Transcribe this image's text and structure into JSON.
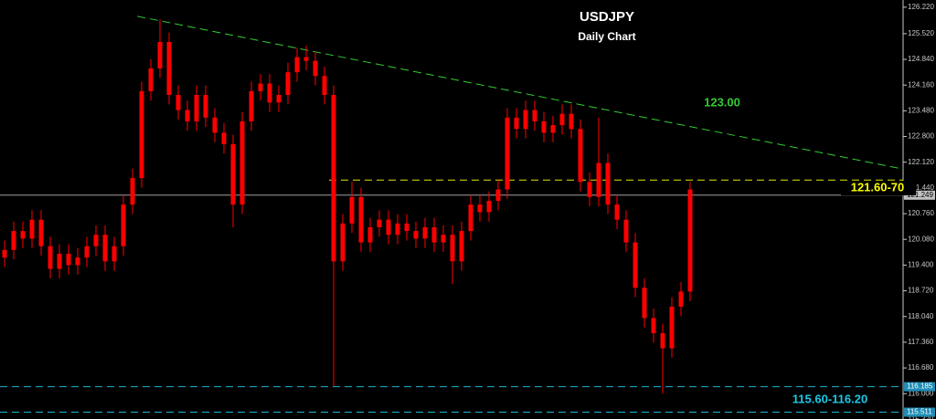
{
  "chart_data": {
    "type": "candlestick",
    "title": "USDJPY",
    "subtitle": "Daily Chart",
    "ylim": [
      115.33,
      126.41
    ],
    "yticks": [
      {
        "value": 126.22,
        "label": "126.220"
      },
      {
        "value": 125.52,
        "label": "125.520"
      },
      {
        "value": 124.84,
        "label": "124.840"
      },
      {
        "value": 124.16,
        "label": "124.160"
      },
      {
        "value": 123.48,
        "label": "123.480"
      },
      {
        "value": 122.8,
        "label": "122.800"
      },
      {
        "value": 122.12,
        "label": "122.120"
      },
      {
        "value": 121.44,
        "label": "121.440"
      },
      {
        "value": 120.76,
        "label": "120.760"
      },
      {
        "value": 120.08,
        "label": "120.080"
      },
      {
        "value": 119.4,
        "label": "119.400"
      },
      {
        "value": 118.72,
        "label": "118.720"
      },
      {
        "value": 118.04,
        "label": "118.040"
      },
      {
        "value": 117.36,
        "label": "117.360"
      },
      {
        "value": 116.68,
        "label": "116.680"
      },
      {
        "value": 116,
        "label": "116.000"
      },
      {
        "value": 115.32,
        "label": "115.320"
      }
    ],
    "color": "#ff0000",
    "open": [
      119.6,
      119.8,
      120.3,
      120.1,
      120.6,
      119.9,
      119.3,
      119.7,
      119.4,
      119.6,
      119.9,
      120.2,
      119.5,
      119.9,
      121.0,
      121.7,
      124.0,
      124.6,
      125.3,
      123.9,
      123.5,
      123.2,
      123.9,
      123.3,
      122.9,
      122.6,
      121.0,
      123.2,
      124.0,
      124.2,
      123.7,
      123.9,
      124.5,
      124.9,
      124.8,
      124.4,
      123.9,
      119.5,
      120.5,
      121.2,
      120.0,
      120.4,
      120.6,
      120.2,
      120.5,
      120.3,
      120.1,
      120.4,
      120.0,
      120.2,
      119.5,
      120.3,
      121.0,
      120.8,
      121.1,
      121.4,
      123.3,
      123.0,
      123.5,
      123.2,
      122.9,
      123.1,
      123.4,
      123.0,
      121.6,
      121.2,
      122.1,
      121.0,
      120.6,
      120.0,
      118.8,
      118.0,
      117.6,
      117.2,
      118.3,
      118.7
    ],
    "high": [
      120.05,
      120.55,
      120.55,
      120.85,
      120.85,
      120.15,
      119.95,
      119.95,
      119.85,
      120.15,
      120.45,
      120.45,
      120.15,
      121.25,
      121.95,
      124.25,
      124.85,
      125.9,
      125.55,
      124.15,
      123.75,
      124.15,
      124.15,
      123.55,
      123.15,
      122.85,
      123.45,
      124.25,
      124.45,
      124.45,
      124.15,
      124.75,
      125.15,
      125.2,
      125.05,
      124.65,
      124.15,
      120.75,
      121.6,
      121.45,
      120.65,
      120.85,
      120.85,
      120.75,
      120.75,
      120.55,
      120.65,
      120.65,
      120.45,
      120.45,
      120.55,
      121.25,
      121.25,
      121.35,
      121.65,
      123.55,
      123.55,
      123.75,
      123.75,
      123.45,
      123.35,
      123.65,
      123.65,
      123.25,
      121.85,
      123.3,
      122.35,
      121.25,
      120.85,
      120.25,
      119.05,
      118.25,
      117.85,
      118.55,
      118.95,
      121.6
    ],
    "low": [
      119.35,
      119.55,
      119.85,
      119.85,
      119.65,
      119.05,
      119.05,
      119.15,
      119.15,
      119.35,
      119.65,
      119.25,
      119.25,
      119.65,
      120.75,
      121.45,
      123.75,
      124.35,
      123.65,
      123.25,
      122.95,
      122.95,
      123.05,
      122.65,
      122.35,
      120.4,
      120.75,
      122.95,
      123.75,
      123.45,
      123.45,
      123.65,
      124.25,
      124.55,
      124.15,
      123.65,
      116.2,
      119.25,
      120.25,
      119.75,
      119.75,
      120.15,
      119.95,
      119.95,
      120.05,
      119.85,
      119.85,
      119.75,
      119.75,
      118.9,
      119.25,
      120.05,
      120.55,
      120.55,
      120.85,
      121.15,
      122.75,
      122.75,
      122.95,
      122.65,
      122.65,
      122.85,
      122.75,
      121.35,
      120.95,
      120.95,
      120.75,
      120.35,
      119.75,
      118.55,
      117.75,
      117.35,
      116.0,
      116.95,
      118.05,
      118.45
    ],
    "close": [
      119.8,
      120.3,
      120.1,
      120.6,
      119.9,
      119.3,
      119.7,
      119.4,
      119.6,
      119.9,
      120.2,
      119.5,
      119.9,
      121.0,
      121.7,
      124.0,
      124.6,
      125.3,
      123.9,
      123.5,
      123.2,
      123.9,
      123.3,
      122.9,
      122.6,
      121.0,
      123.2,
      124.0,
      124.2,
      123.7,
      123.9,
      124.5,
      124.9,
      124.8,
      124.4,
      123.9,
      119.5,
      120.5,
      121.2,
      120.0,
      120.4,
      120.6,
      120.2,
      120.5,
      120.3,
      120.1,
      120.4,
      120.0,
      120.2,
      119.5,
      120.3,
      121.0,
      120.8,
      121.1,
      121.4,
      123.3,
      123.0,
      123.5,
      123.2,
      122.9,
      123.1,
      123.4,
      123.0,
      121.6,
      121.2,
      122.1,
      121.0,
      120.6,
      120.0,
      118.8,
      118.0,
      117.6,
      117.2,
      118.3,
      118.7,
      121.4
    ],
    "trendline": {
      "x": [
        14.5,
        98.3
      ],
      "values": [
        125.98,
        121.94
      ],
      "color": "#33cc33"
    },
    "levels": [
      {
        "value": 121.65,
        "from": 35.5,
        "color": "#e6e600"
      },
      {
        "value": 116.185,
        "from": -0.5,
        "color": "#1eb4d2"
      },
      {
        "value": 115.511,
        "from": -0.5,
        "color": "#1eb4d2"
      }
    ],
    "price_tags": [
      {
        "value": 121.249,
        "color": "#c0c0c0"
      },
      {
        "value": 116.185,
        "color": "#1e8cb4"
      },
      {
        "value": 115.511,
        "color": "#1e8cb4"
      }
    ],
    "annotations": [
      {
        "text": "123.00",
        "color": "#33cc33"
      },
      {
        "text": "121.60-70",
        "color": "#ffff00"
      },
      {
        "text": "115.60-116.20",
        "color": "#1ec8e6"
      }
    ]
  }
}
